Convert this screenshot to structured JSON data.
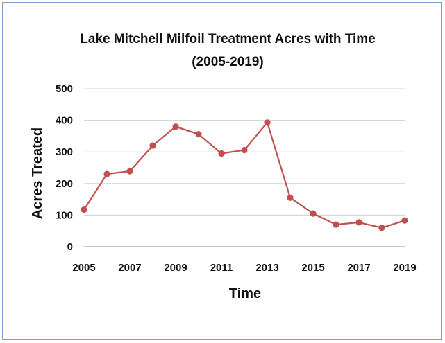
{
  "chart_data": {
    "type": "line",
    "title": "Lake Mitchell Milfoil Treatment Acres with Time",
    "subtitle": "(2005-2019)",
    "xlabel": "Time",
    "ylabel": "Acres Treated",
    "x": [
      2005,
      2006,
      2007,
      2008,
      2009,
      2010,
      2011,
      2012,
      2013,
      2014,
      2015,
      2016,
      2017,
      2018,
      2019
    ],
    "series": [
      {
        "values": [
          117,
          230,
          239,
          320,
          380,
          356,
          295,
          306,
          393,
          155,
          105,
          70,
          77,
          60,
          83
        ]
      }
    ],
    "xlim": [
      2005,
      2019
    ],
    "ylim": [
      0,
      500
    ],
    "x_ticks": [
      "2005",
      "2007",
      "2009",
      "2011",
      "2013",
      "2015",
      "2017",
      "2019"
    ],
    "y_ticks": [
      "0",
      "100",
      "200",
      "300",
      "400",
      "500"
    ],
    "grid": true,
    "line_color": "#c0504d",
    "legend": "none"
  }
}
